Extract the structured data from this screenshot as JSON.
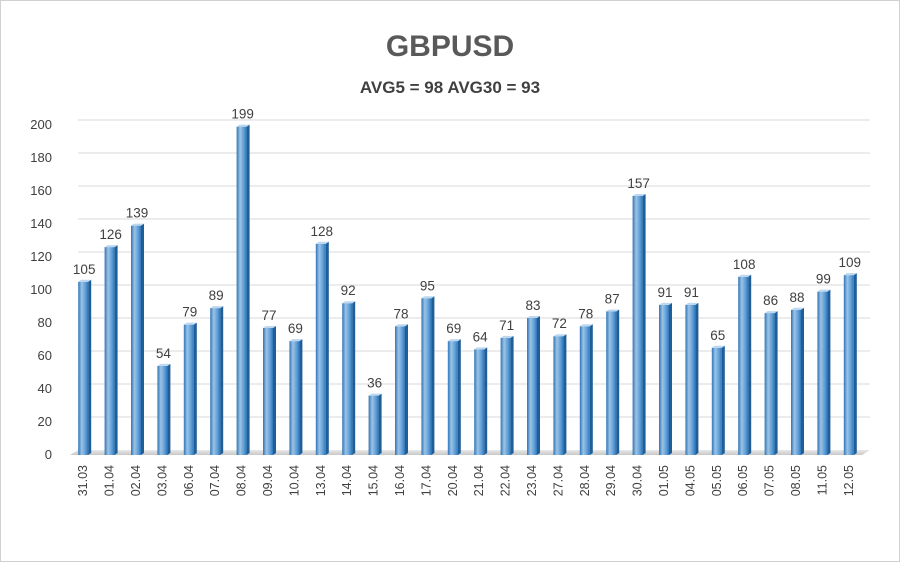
{
  "chart_data": {
    "type": "bar",
    "title": "GBPUSD",
    "subtitle": "AVG5 = 98 AVG30 = 93",
    "categories": [
      "31.03",
      "01.04",
      "02.04",
      "03.04",
      "06.04",
      "07.04",
      "08.04",
      "09.04",
      "10.04",
      "13.04",
      "14.04",
      "15.04",
      "16.04",
      "17.04",
      "20.04",
      "21.04",
      "22.04",
      "23.04",
      "27.04",
      "28.04",
      "29.04",
      "30.04",
      "01.05",
      "04.05",
      "05.05",
      "06.05",
      "07.05",
      "08.05",
      "11.05",
      "12.05"
    ],
    "values": [
      105,
      126,
      139,
      54,
      79,
      89,
      199,
      77,
      69,
      128,
      92,
      36,
      78,
      95,
      69,
      64,
      71,
      83,
      72,
      78,
      87,
      157,
      91,
      91,
      65,
      108,
      86,
      88,
      99,
      109
    ],
    "ylim": [
      0,
      200
    ],
    "yticks": [
      0,
      20,
      40,
      60,
      80,
      100,
      120,
      140,
      160,
      180,
      200
    ],
    "grid": true,
    "legend": "none",
    "colors": {
      "bar_light": "#9cc3e6",
      "bar_mid": "#5b9bd5",
      "bar_dark": "#2e75b6",
      "grid": "#d9d9d9"
    }
  }
}
